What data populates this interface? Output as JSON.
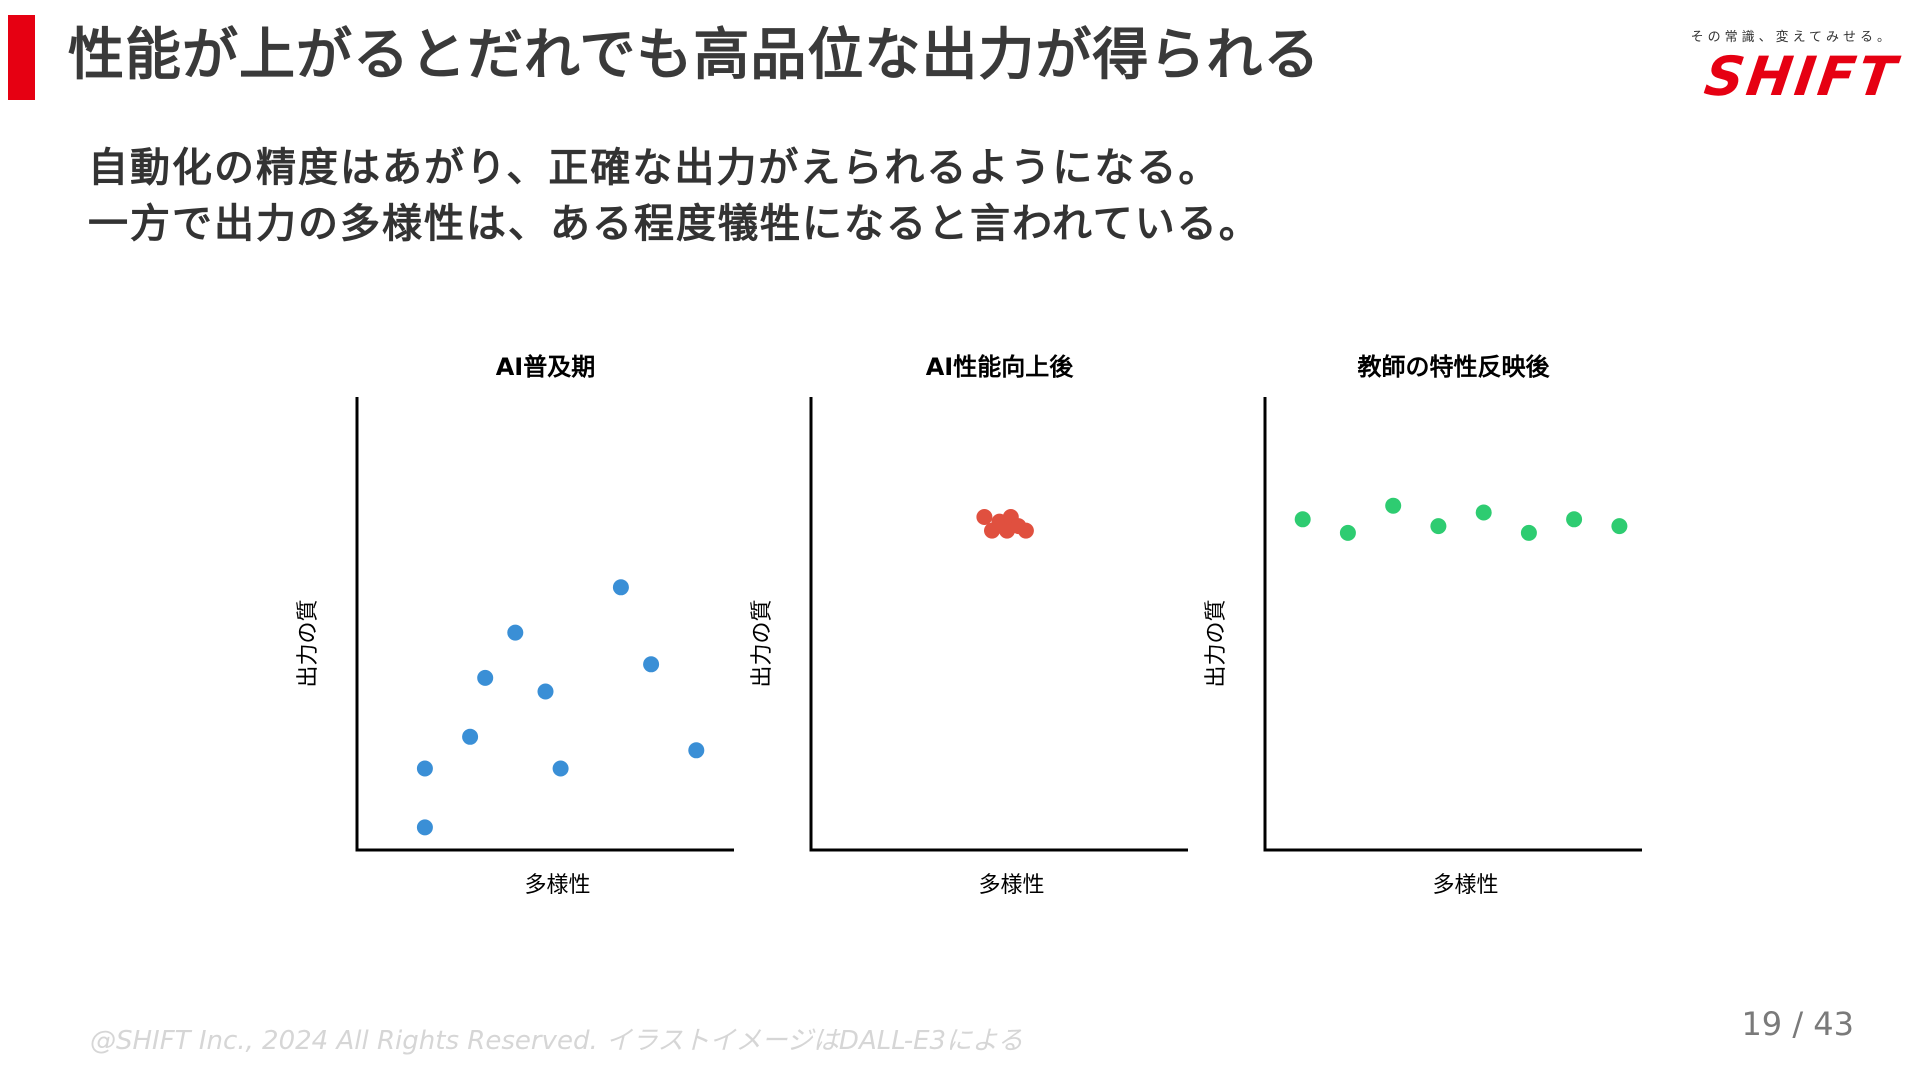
{
  "header": {
    "title": "性能が上がるとだれでも高品位な出力が得られる",
    "accent_color": "#e60012"
  },
  "logo": {
    "tagline": "その常識、変えてみせる。",
    "brand": "SHIFT"
  },
  "body": {
    "line1": "自動化の精度はあがり、正確な出力がえられるようになる。",
    "line2": "一方で出力の多様性は、ある程度犠牲になると言われている。"
  },
  "footer": {
    "copyright": "@SHIFT Inc., 2024 All Rights Reserved. イラストイメージはDALL-E3による",
    "page": "19 / 43"
  },
  "chart_data": [
    {
      "type": "scatter",
      "title": "AI普及期",
      "xlabel": "多様性",
      "ylabel": "出力の質",
      "color": "#3a8fd6",
      "xlim": [
        0,
        100
      ],
      "ylim": [
        0,
        100
      ],
      "grid": false,
      "points": [
        {
          "x": 18,
          "y": 5
        },
        {
          "x": 18,
          "y": 18
        },
        {
          "x": 30,
          "y": 25
        },
        {
          "x": 34,
          "y": 38
        },
        {
          "x": 42,
          "y": 48
        },
        {
          "x": 50,
          "y": 35
        },
        {
          "x": 54,
          "y": 18
        },
        {
          "x": 70,
          "y": 58
        },
        {
          "x": 78,
          "y": 41
        },
        {
          "x": 90,
          "y": 22
        }
      ]
    },
    {
      "type": "scatter",
      "title": "AI性能向上後",
      "xlabel": "多様性",
      "ylabel": "出力の質",
      "color": "#e0503f",
      "xlim": [
        0,
        100
      ],
      "ylim": [
        0,
        100
      ],
      "grid": false,
      "points": [
        {
          "x": 46,
          "y": 73.5
        },
        {
          "x": 48,
          "y": 70.5
        },
        {
          "x": 50,
          "y": 72.5
        },
        {
          "x": 52,
          "y": 70.5
        },
        {
          "x": 53,
          "y": 73.5
        },
        {
          "x": 55,
          "y": 71.5
        },
        {
          "x": 57,
          "y": 70.5
        }
      ]
    },
    {
      "type": "scatter",
      "title": "教師の特性反映後",
      "xlabel": "多様性",
      "ylabel": "出力の質",
      "color": "#2ecc71",
      "xlim": [
        0,
        100
      ],
      "ylim": [
        0,
        100
      ],
      "grid": false,
      "points": [
        {
          "x": 10,
          "y": 73
        },
        {
          "x": 22,
          "y": 70
        },
        {
          "x": 34,
          "y": 76
        },
        {
          "x": 46,
          "y": 71.5
        },
        {
          "x": 58,
          "y": 74.5
        },
        {
          "x": 70,
          "y": 70
        },
        {
          "x": 82,
          "y": 73
        },
        {
          "x": 94,
          "y": 71.5
        }
      ]
    }
  ]
}
